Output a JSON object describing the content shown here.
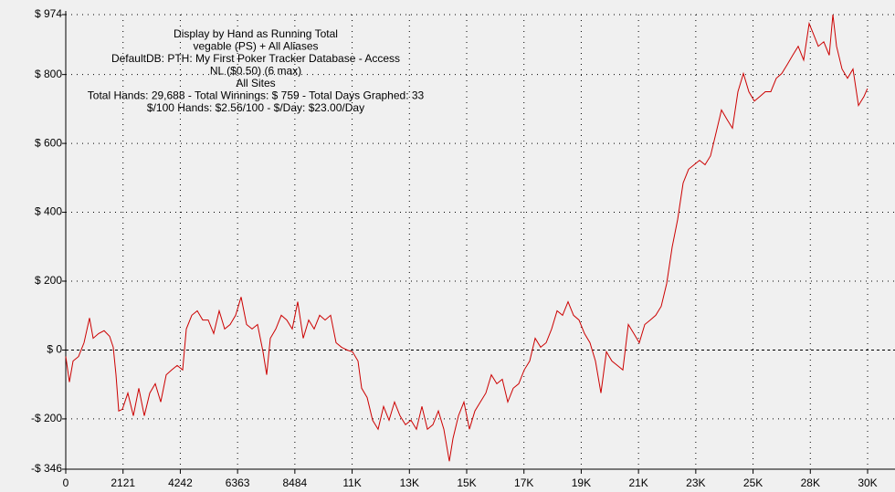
{
  "chart_data": {
    "type": "line",
    "title": [
      "Display by Hand as Running Total",
      "vegable (PS) + All Aliases",
      "DefaultDB: PTH: My First Poker Tracker Database - Access",
      "NL ($0.50) (6 max)",
      "All Sites",
      "Total Hands: 29,688 - Total Winnings: $ 759 - Total Days Graphed: 33",
      "$/100 Hands: $2.56/100 - $/Day: $23.00/Day"
    ],
    "xlim": [
      0,
      29694
    ],
    "xticks": [
      0,
      2121,
      4242,
      6363,
      8484,
      {
        "value": 10605,
        "label": "11K"
      },
      {
        "value": 12726,
        "label": "13K"
      },
      {
        "value": 14847,
        "label": "15K"
      },
      {
        "value": 16968,
        "label": "17K"
      },
      {
        "value": 19089,
        "label": "19K"
      },
      {
        "value": 21210,
        "label": "21K"
      },
      {
        "value": 23331,
        "label": "23K"
      },
      {
        "value": 25452,
        "label": "25K"
      },
      {
        "value": 27573,
        "label": "28K"
      },
      {
        "value": 29694,
        "label": "30K"
      }
    ],
    "ylim": [
      -346,
      974
    ],
    "yticks": [
      {
        "value": 974,
        "label": "$ 974"
      },
      {
        "value": 800,
        "label": "$ 800"
      },
      {
        "value": 600,
        "label": "$ 600"
      },
      {
        "value": 400,
        "label": "$ 400"
      },
      {
        "value": 200,
        "label": "$ 200"
      },
      {
        "value": 0,
        "label": "$ 0"
      },
      {
        "value": -200,
        "label": "-$ 200"
      },
      {
        "value": -346,
        "label": "-$ 346"
      }
    ],
    "grid": true,
    "series": [
      {
        "color": "#cc0000",
        "x": [
          0,
          135,
          271,
          473,
          676,
          879,
          1015,
          1218,
          1420,
          1623,
          1759,
          1860,
          1962,
          2097,
          2300,
          2503,
          2706,
          2909,
          3111,
          3314,
          3517,
          3720,
          3923,
          4126,
          4329,
          4464,
          4667,
          4870,
          5073,
          5276,
          5479,
          5682,
          5885,
          6088,
          6291,
          6493,
          6696,
          6899,
          7102,
          7305,
          7440,
          7576,
          7779,
          7982,
          8184,
          8387,
          8590,
          8793,
          8996,
          9199,
          9402,
          9605,
          9808,
          10011,
          10214,
          10417,
          10619,
          10822,
          10958,
          11161,
          11364,
          11566,
          11769,
          11972,
          12175,
          12378,
          12581,
          12784,
          12987,
          13190,
          13393,
          13596,
          13798,
          14001,
          14204,
          14340,
          14543,
          14745,
          14948,
          15151,
          15354,
          15557,
          15760,
          15963,
          16166,
          16369,
          16572,
          16775,
          16978,
          17181,
          17383,
          17586,
          17789,
          17992,
          18195,
          18398,
          18601,
          18804,
          19007,
          19210,
          19413,
          19616,
          19819,
          20021,
          20224,
          20427,
          20630,
          20833,
          21036,
          21239,
          21442,
          21645,
          21848,
          22051,
          22254,
          22457,
          22659,
          22862,
          23065,
          23268,
          23471,
          23674,
          23877,
          24080,
          24283,
          24486,
          24689,
          24892,
          25094,
          25297,
          25500,
          25703,
          25906,
          26109,
          26312,
          26515,
          26718,
          26921,
          27124,
          27327,
          27529,
          27665,
          27868,
          28071,
          28274,
          28409,
          28545,
          28748,
          28950,
          29153,
          29356,
          29559,
          29688
        ],
        "values": [
          -19,
          -93,
          -32,
          -19,
          21,
          93,
          34,
          48,
          56,
          40,
          8,
          -72,
          -177,
          -172,
          -125,
          -191,
          -111,
          -191,
          -125,
          -98,
          -151,
          -72,
          -58,
          -45,
          -58,
          61,
          101,
          114,
          87,
          87,
          48,
          114,
          61,
          74,
          101,
          154,
          74,
          61,
          74,
          -5,
          -72,
          34,
          61,
          101,
          87,
          61,
          140,
          34,
          87,
          61,
          101,
          87,
          101,
          21,
          8,
          0,
          -5,
          -32,
          -111,
          -138,
          -204,
          -230,
          -164,
          -204,
          -151,
          -191,
          -217,
          -204,
          -230,
          -164,
          -230,
          -217,
          -177,
          -230,
          -323,
          -257,
          -191,
          -151,
          -230,
          -177,
          -151,
          -125,
          -72,
          -98,
          -85,
          -151,
          -111,
          -98,
          -58,
          -32,
          34,
          8,
          21,
          61,
          114,
          101,
          140,
          101,
          87,
          48,
          21,
          -32,
          -125,
          -5,
          -32,
          -45,
          -58,
          74,
          48,
          21,
          74,
          87,
          101,
          127,
          193,
          299,
          379,
          485,
          525,
          538,
          551,
          538,
          564,
          630,
          697,
          670,
          644,
          750,
          803,
          750,
          723,
          736,
          750,
          750,
          789,
          803,
          829,
          856,
          882,
          842,
          948,
          922,
          882,
          895,
          856,
          974,
          882,
          816,
          789,
          816,
          710,
          736,
          759
        ]
      }
    ]
  }
}
